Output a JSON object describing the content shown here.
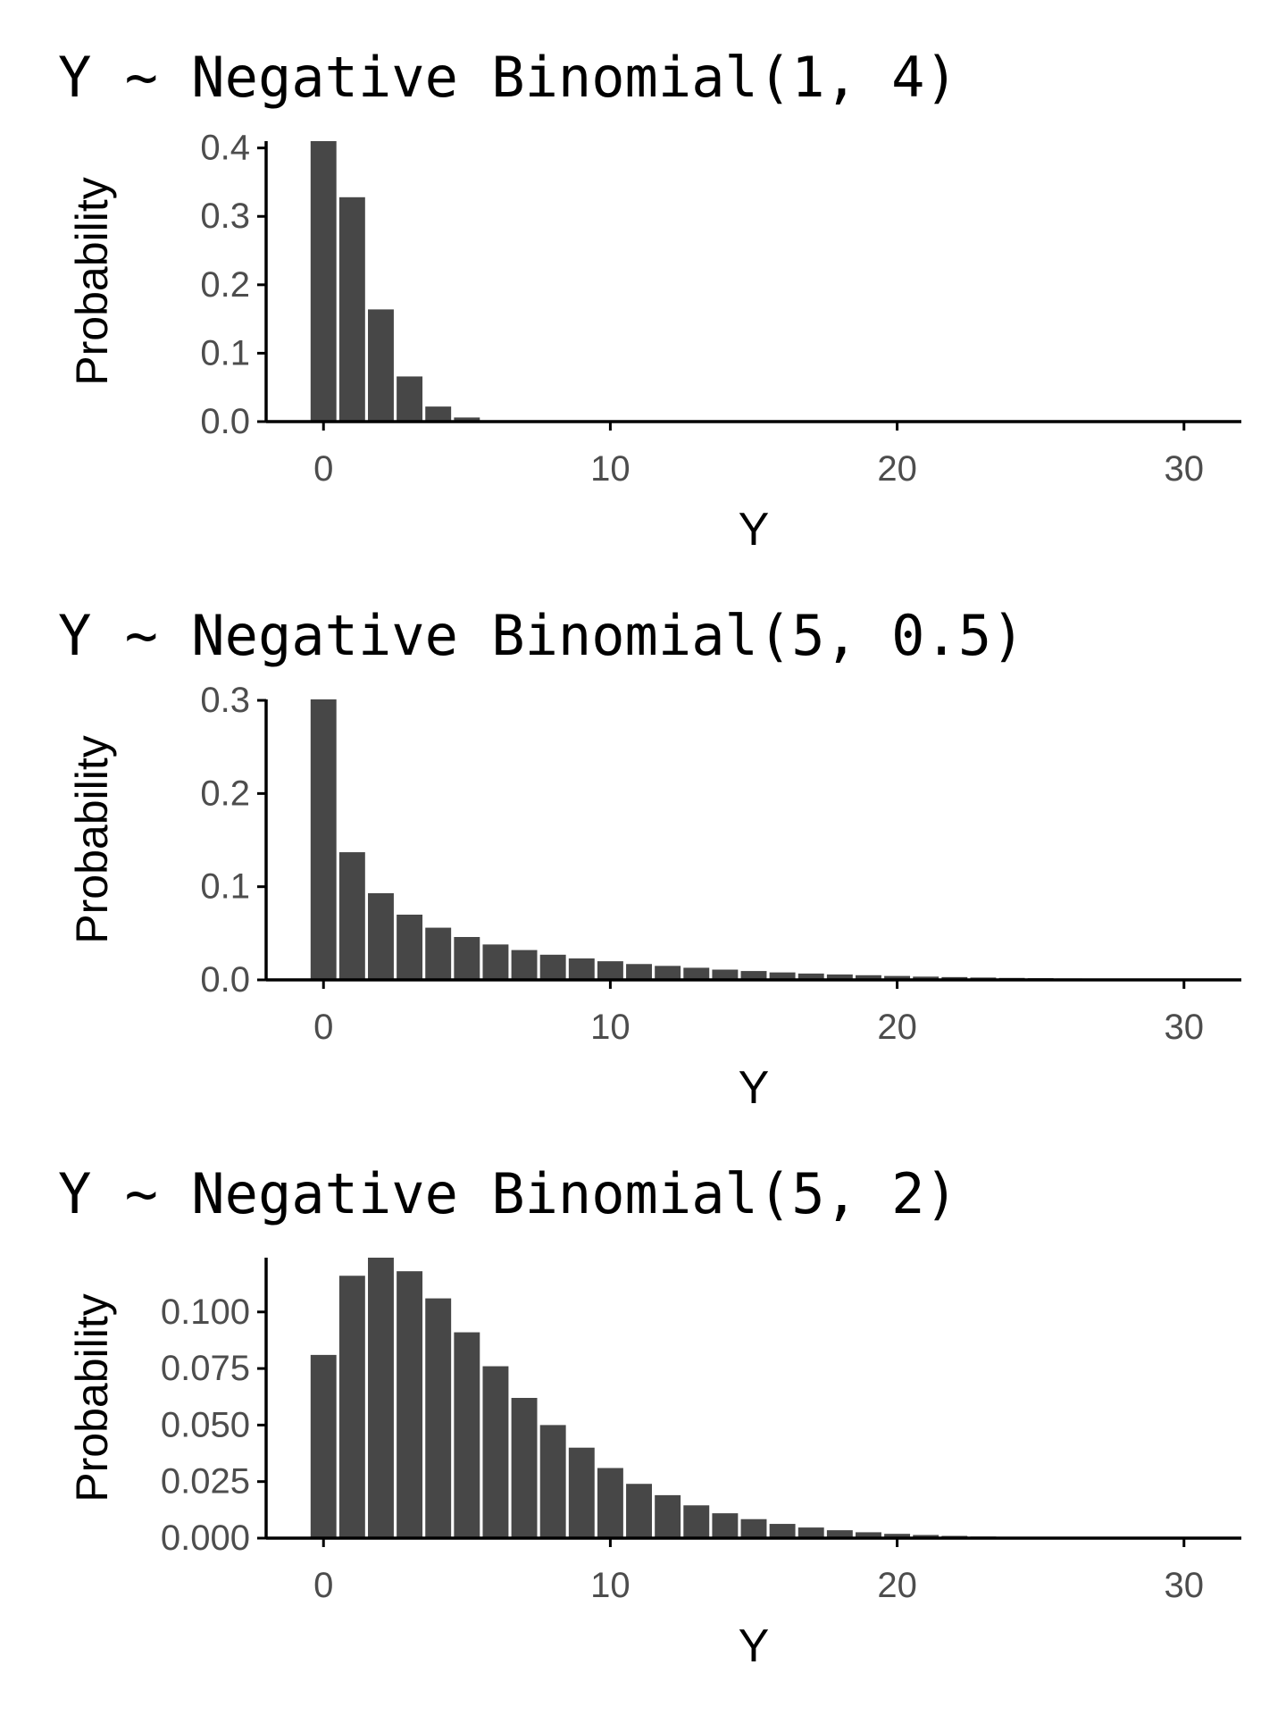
{
  "colors": {
    "bar": "#474747",
    "axis": "#000000",
    "tick_text": "#4d4d4d",
    "background": "#ffffff"
  },
  "chart_data": [
    {
      "type": "bar",
      "title": "Y ~ Negative Binomial(1, 4)",
      "xlabel": "Y",
      "ylabel": "Probability",
      "xlim": [
        -2,
        32
      ],
      "ylim": [
        0,
        0.41
      ],
      "xticks": [
        0,
        10,
        20,
        30
      ],
      "xtick_labels": [
        "0",
        "10",
        "20",
        "30"
      ],
      "yticks": [
        0,
        0.1,
        0.2,
        0.3,
        0.4
      ],
      "ytick_labels": [
        "0.0",
        "0.1",
        "0.2",
        "0.3",
        "0.4"
      ],
      "x": [
        0,
        1,
        2,
        3,
        4,
        5,
        6,
        7,
        8,
        9,
        10,
        11,
        12,
        13,
        14,
        15,
        16,
        17,
        18,
        19,
        20,
        21,
        22,
        23,
        24,
        25,
        26,
        27,
        28,
        29,
        30
      ],
      "values": [
        0.41,
        0.328,
        0.164,
        0.066,
        0.022,
        0.006,
        0.0016,
        0.0004,
        0.0001,
        0,
        0,
        0,
        0,
        0,
        0,
        0,
        0,
        0,
        0,
        0,
        0,
        0,
        0,
        0,
        0,
        0,
        0,
        0,
        0,
        0,
        0
      ]
    },
    {
      "type": "bar",
      "title": "Y ~ Negative Binomial(5, 0.5)",
      "xlabel": "Y",
      "ylabel": "Probability",
      "xlim": [
        -2,
        32
      ],
      "ylim": [
        0,
        0.301
      ],
      "xticks": [
        0,
        10,
        20,
        30
      ],
      "xtick_labels": [
        "0",
        "10",
        "20",
        "30"
      ],
      "yticks": [
        0,
        0.1,
        0.2,
        0.3
      ],
      "ytick_labels": [
        "0.0",
        "0.1",
        "0.2",
        "0.3"
      ],
      "x": [
        0,
        1,
        2,
        3,
        4,
        5,
        6,
        7,
        8,
        9,
        10,
        11,
        12,
        13,
        14,
        15,
        16,
        17,
        18,
        19,
        20,
        21,
        22,
        23,
        24,
        25,
        26,
        27,
        28,
        29,
        30
      ],
      "values": [
        0.301,
        0.137,
        0.093,
        0.07,
        0.056,
        0.046,
        0.038,
        0.032,
        0.027,
        0.023,
        0.02,
        0.017,
        0.015,
        0.013,
        0.011,
        0.0095,
        0.008,
        0.0068,
        0.0058,
        0.005,
        0.0042,
        0.0035,
        0.003,
        0.0025,
        0.0021,
        0.0018,
        0.0015,
        0.0012,
        0.001,
        0.0008,
        0.0007
      ]
    },
    {
      "type": "bar",
      "title": "Y ~ Negative Binomial(5, 2)",
      "xlabel": "Y",
      "ylabel": "Probability",
      "xlim": [
        -2,
        32
      ],
      "ylim": [
        0,
        0.124
      ],
      "xticks": [
        0,
        10,
        20,
        30
      ],
      "xtick_labels": [
        "0",
        "10",
        "20",
        "30"
      ],
      "yticks": [
        0,
        0.025,
        0.05,
        0.075,
        0.1
      ],
      "ytick_labels": [
        "0.000",
        "0.025",
        "0.050",
        "0.075",
        "0.100"
      ],
      "x": [
        0,
        1,
        2,
        3,
        4,
        5,
        6,
        7,
        8,
        9,
        10,
        11,
        12,
        13,
        14,
        15,
        16,
        17,
        18,
        19,
        20,
        21,
        22,
        23,
        24,
        25,
        26,
        27,
        28,
        29,
        30
      ],
      "values": [
        0.081,
        0.116,
        0.124,
        0.118,
        0.106,
        0.091,
        0.076,
        0.062,
        0.05,
        0.04,
        0.031,
        0.024,
        0.019,
        0.0145,
        0.011,
        0.0084,
        0.0063,
        0.0047,
        0.0035,
        0.0026,
        0.0019,
        0.0014,
        0.001,
        0.0007,
        0.0005,
        0.0004,
        0.0003,
        0.0002,
        0.0001,
        0.0001,
        0.0001
      ]
    }
  ]
}
